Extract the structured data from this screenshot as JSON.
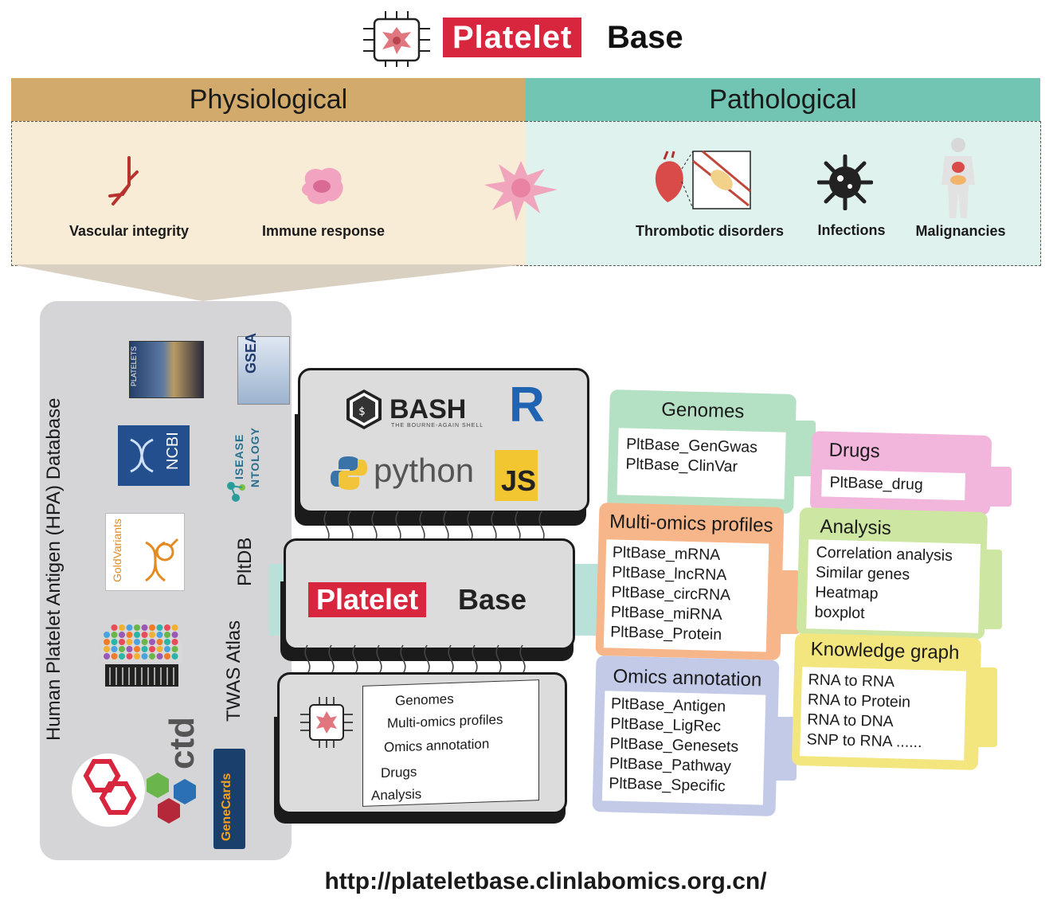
{
  "logo": {
    "part1": "Platelet",
    "part2": "Base"
  },
  "physiological": {
    "title": "Physiological",
    "items": [
      "Vascular integrity",
      "Immune response"
    ]
  },
  "pathological": {
    "title": "Pathological",
    "items": [
      "Thrombotic disorders",
      "Infections",
      "Malignancies"
    ]
  },
  "left_panel": {
    "hpa": "Human Platelet Antigen (HPA) Database",
    "pltdb": "PltDB",
    "twas": "TWAS Atlas",
    "ncbi": "NCBI",
    "disease_ontology": [
      "ISEASE",
      "NTOLOGY"
    ],
    "goldvariants": "GoldVariants",
    "ctd": "ctd",
    "genecards": "GeneCards",
    "gsea": "GSEA",
    "platelets_book": "PLATELETS"
  },
  "tools": {
    "bash": "BASH",
    "bash_sub": "THE BOURNE-AGAIN SHELL",
    "r": "R",
    "python": "python",
    "js": "JS"
  },
  "modules": [
    "Genomes",
    "Multi-omics profiles",
    "Omics annotation",
    "Drugs",
    "Analysis"
  ],
  "cards": {
    "genomes": {
      "title": "Genomes",
      "items": [
        "PltBase_GenGwas",
        "PltBase_ClinVar"
      ]
    },
    "multiomics": {
      "title": "Multi-omics profiles",
      "items": [
        "PltBase_mRNA",
        "PltBase_lncRNA",
        "PltBase_circRNA",
        "PltBase_miRNA",
        "PltBase_Protein"
      ]
    },
    "annotation": {
      "title": "Omics annotation",
      "items": [
        "PltBase_Antigen",
        "PltBase_LigRec",
        "PltBase_Genesets",
        "PltBase_Pathway",
        "PltBase_Specific"
      ]
    },
    "drugs": {
      "title": "Drugs",
      "items": [
        "PltBase_drug"
      ]
    },
    "analysis": {
      "title": "Analysis",
      "items": [
        "Correlation analysis",
        "Similar genes",
        "Heatmap",
        "boxplot"
      ]
    },
    "knowledge": {
      "title": "Knowledge graph",
      "items": [
        "RNA to RNA",
        "RNA to Protein",
        "RNA to DNA",
        "SNP to RNA ......"
      ]
    }
  },
  "url": "http://plateletbase.clinlabomics.org.cn/",
  "colors": {
    "red": "#d7263d",
    "tan": "#d2aa6c",
    "teal": "#72c5b2",
    "genomes": "#b4e0c4",
    "multiomics": "#f6b68a",
    "annotation": "#c3cae8",
    "drugs": "#f2b5dc",
    "analysis": "#cde6a2",
    "knowledge": "#f4e67e"
  }
}
